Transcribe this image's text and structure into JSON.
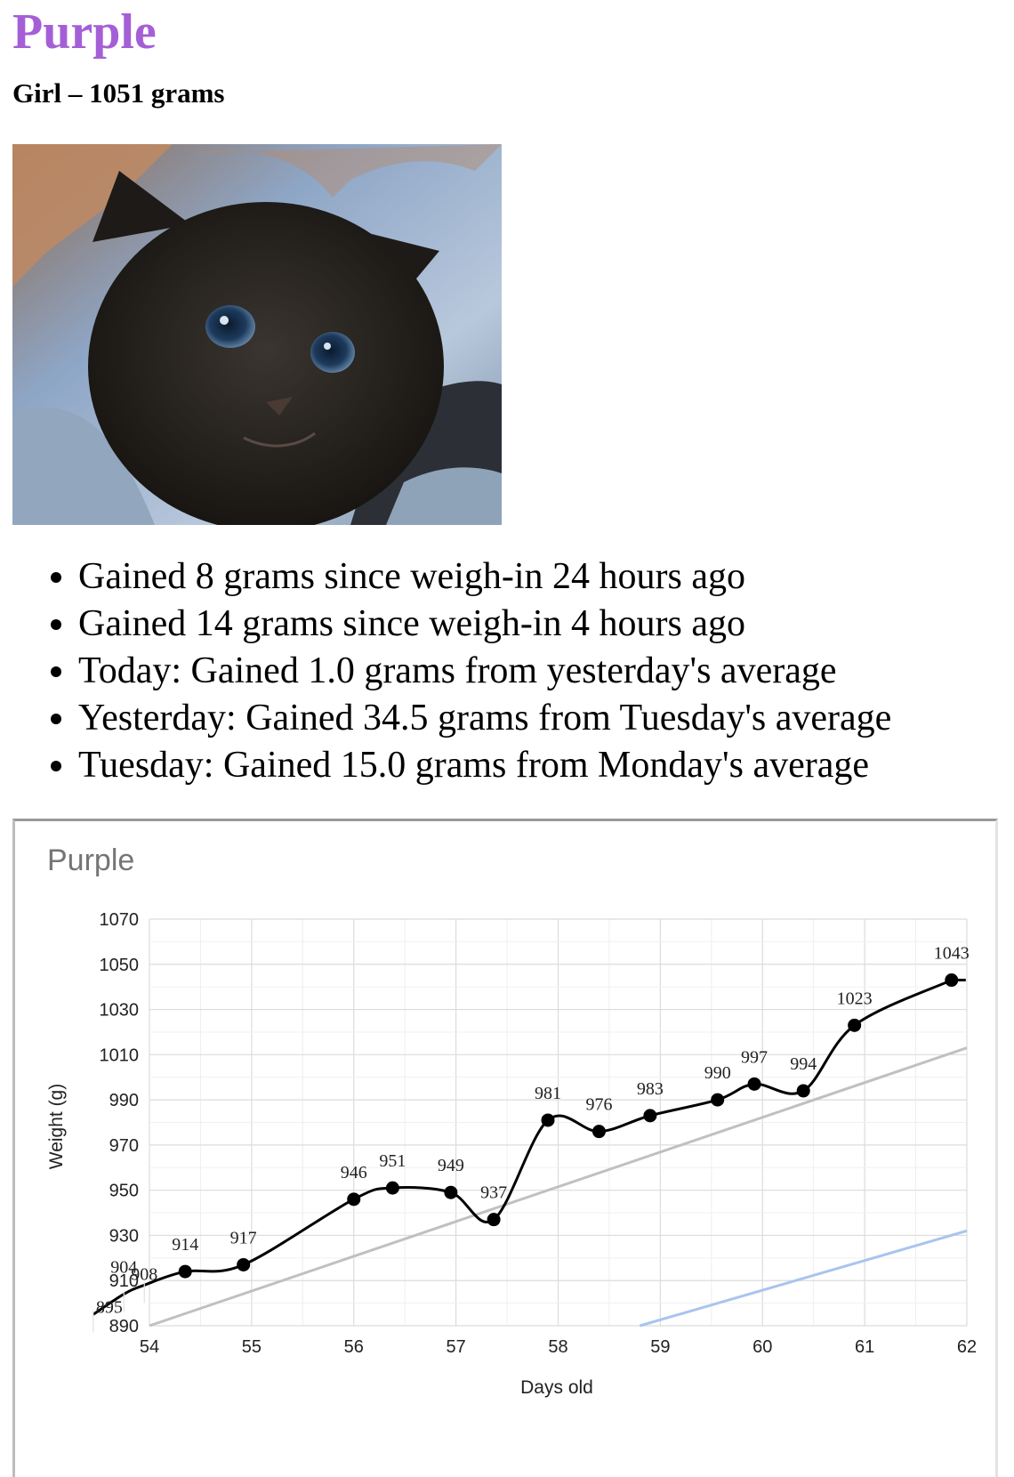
{
  "header": {
    "name": "Purple",
    "subtitle": "Girl – 1051 grams",
    "name_color": "#a55fd6"
  },
  "updates": [
    "Gained 8 grams since weigh-in 24 hours ago",
    "Gained 14 grams since weigh-in 4 hours ago",
    "Today: Gained 1.0 grams from yesterday's average",
    "Yesterday: Gained 34.5 grams from Tuesday's average",
    "Tuesday: Gained 15.0 grams from Monday's average"
  ],
  "chart_data": {
    "type": "line",
    "title": "Purple",
    "xlabel": "Days old",
    "ylabel": "Weight (g)",
    "xlim": [
      54,
      62
    ],
    "ylim": [
      890,
      1070
    ],
    "x_ticks": [
      54,
      55,
      56,
      57,
      58,
      59,
      60,
      61,
      62
    ],
    "y_ticks": [
      890,
      910,
      930,
      950,
      970,
      990,
      1010,
      1030,
      1050,
      1070
    ],
    "grid": true,
    "legend": "none",
    "series": [
      {
        "color": "#000000",
        "points": [
          {
            "x": 53.45,
            "y": 895
          },
          {
            "x": 53.75,
            "y": 904
          },
          {
            "x": 53.95,
            "y": 908
          },
          {
            "x": 54.35,
            "y": 914
          },
          {
            "x": 54.92,
            "y": 917
          },
          {
            "x": 56.0,
            "y": 946
          },
          {
            "x": 56.38,
            "y": 951
          },
          {
            "x": 56.95,
            "y": 949
          },
          {
            "x": 57.37,
            "y": 937
          },
          {
            "x": 57.9,
            "y": 981
          },
          {
            "x": 58.4,
            "y": 976
          },
          {
            "x": 58.9,
            "y": 983
          },
          {
            "x": 59.56,
            "y": 990
          },
          {
            "x": 59.92,
            "y": 997
          },
          {
            "x": 60.4,
            "y": 994
          },
          {
            "x": 60.9,
            "y": 1023
          },
          {
            "x": 61.85,
            "y": 1043
          }
        ]
      }
    ],
    "trendlines": [
      {
        "color": "#c0c0c0",
        "from": [
          54,
          890
        ],
        "to": [
          62,
          1013
        ]
      },
      {
        "color": "#a9c4ef",
        "from": [
          58.8,
          890
        ],
        "to": [
          62,
          932
        ]
      }
    ]
  }
}
